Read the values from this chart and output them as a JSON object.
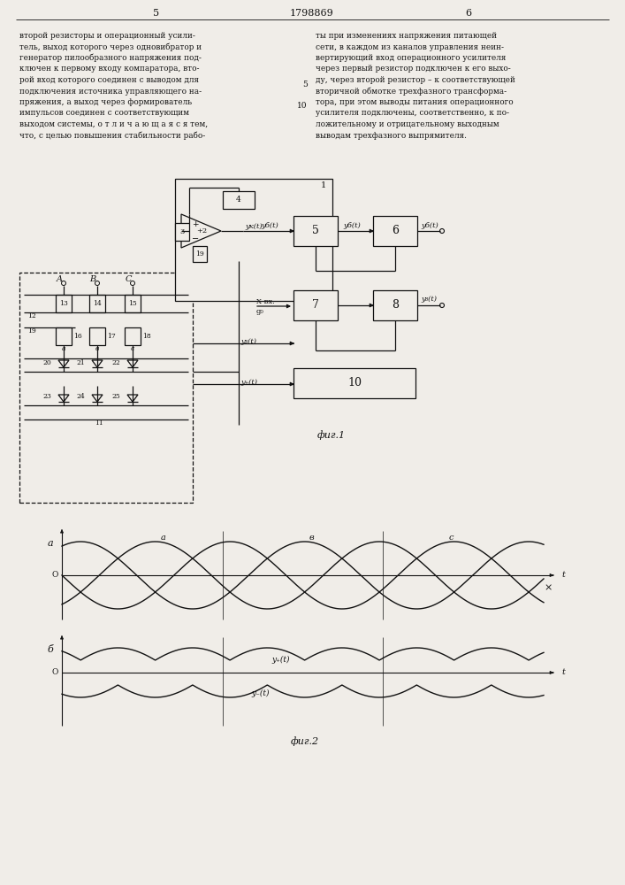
{
  "bg": "#f0ede8",
  "lc": "#111111",
  "page_num_left": "5",
  "page_num_center": "1798869",
  "page_num_right": "6",
  "fig1_caption": "фиг.1",
  "fig2_caption": "фиг.2",
  "text_col1": [
    "второй резисторы и операционный усили-",
    "тель, выход которого через одновибратор и",
    "генератор пилообразного напряжения под-",
    "ключен к первому входу компаратора, вто-",
    "рой вход которого соединен с выводом для",
    "подключения источника управляющего на-",
    "пряжения, а выход через формирователь",
    "импульсов соединен с соответствующим",
    "выходом системы, о т л и ч а ю щ а я с я тем,",
    "что, с целью повышения стабильности рабо-"
  ],
  "text_col2": [
    "ты при изменениях напряжения питающей",
    "сети, в каждом из каналов управления неин-",
    "вертирующий вход операционного усилителя",
    "через первый резистор подключен к его выхо-",
    "ду, через второй резистор – к соответствующей",
    "вторичной обмотке трехфазного трансформа-",
    "тора, при этом выводы питания операционного",
    "усилителя подключены, соответственно, к по-",
    "ложительному и отрицательному выходным",
    "выводам трехфазного выпрямителя."
  ]
}
